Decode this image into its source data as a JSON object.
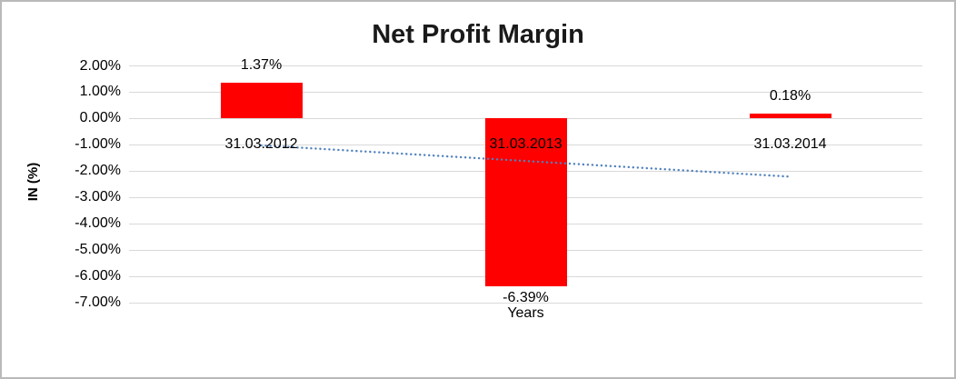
{
  "chart_data": {
    "type": "bar",
    "title": "Net Profit Margin",
    "xlabel": "Years",
    "ylabel": "IN (%)",
    "categories": [
      "31.03.2012",
      "31.03.2013",
      "31.03.2014"
    ],
    "values": [
      1.37,
      -6.39,
      0.18
    ],
    "data_labels": [
      "1.37%",
      "-6.39%",
      "0.18%"
    ],
    "ylim": [
      -7,
      2
    ],
    "ytick_values": [
      2,
      1,
      0,
      -1,
      -2,
      -3,
      -4,
      -5,
      -6,
      -7
    ],
    "ytick_labels": [
      "2.00%",
      "1.00%",
      "0.00%",
      "-1.00%",
      "-2.00%",
      "-3.00%",
      "-4.00%",
      "-5.00%",
      "-6.00%",
      "-7.00%"
    ],
    "grid": true,
    "legend": false,
    "bar_color": "#ff0000",
    "trendline": {
      "style": "dotted",
      "color": "#4f81bd",
      "start_value": -1.02,
      "end_value": -2.21
    }
  },
  "colors": {
    "background": "#ffffff",
    "border": "#b9b9b9",
    "gridline": "#d9d9d9",
    "text": "#000000"
  }
}
